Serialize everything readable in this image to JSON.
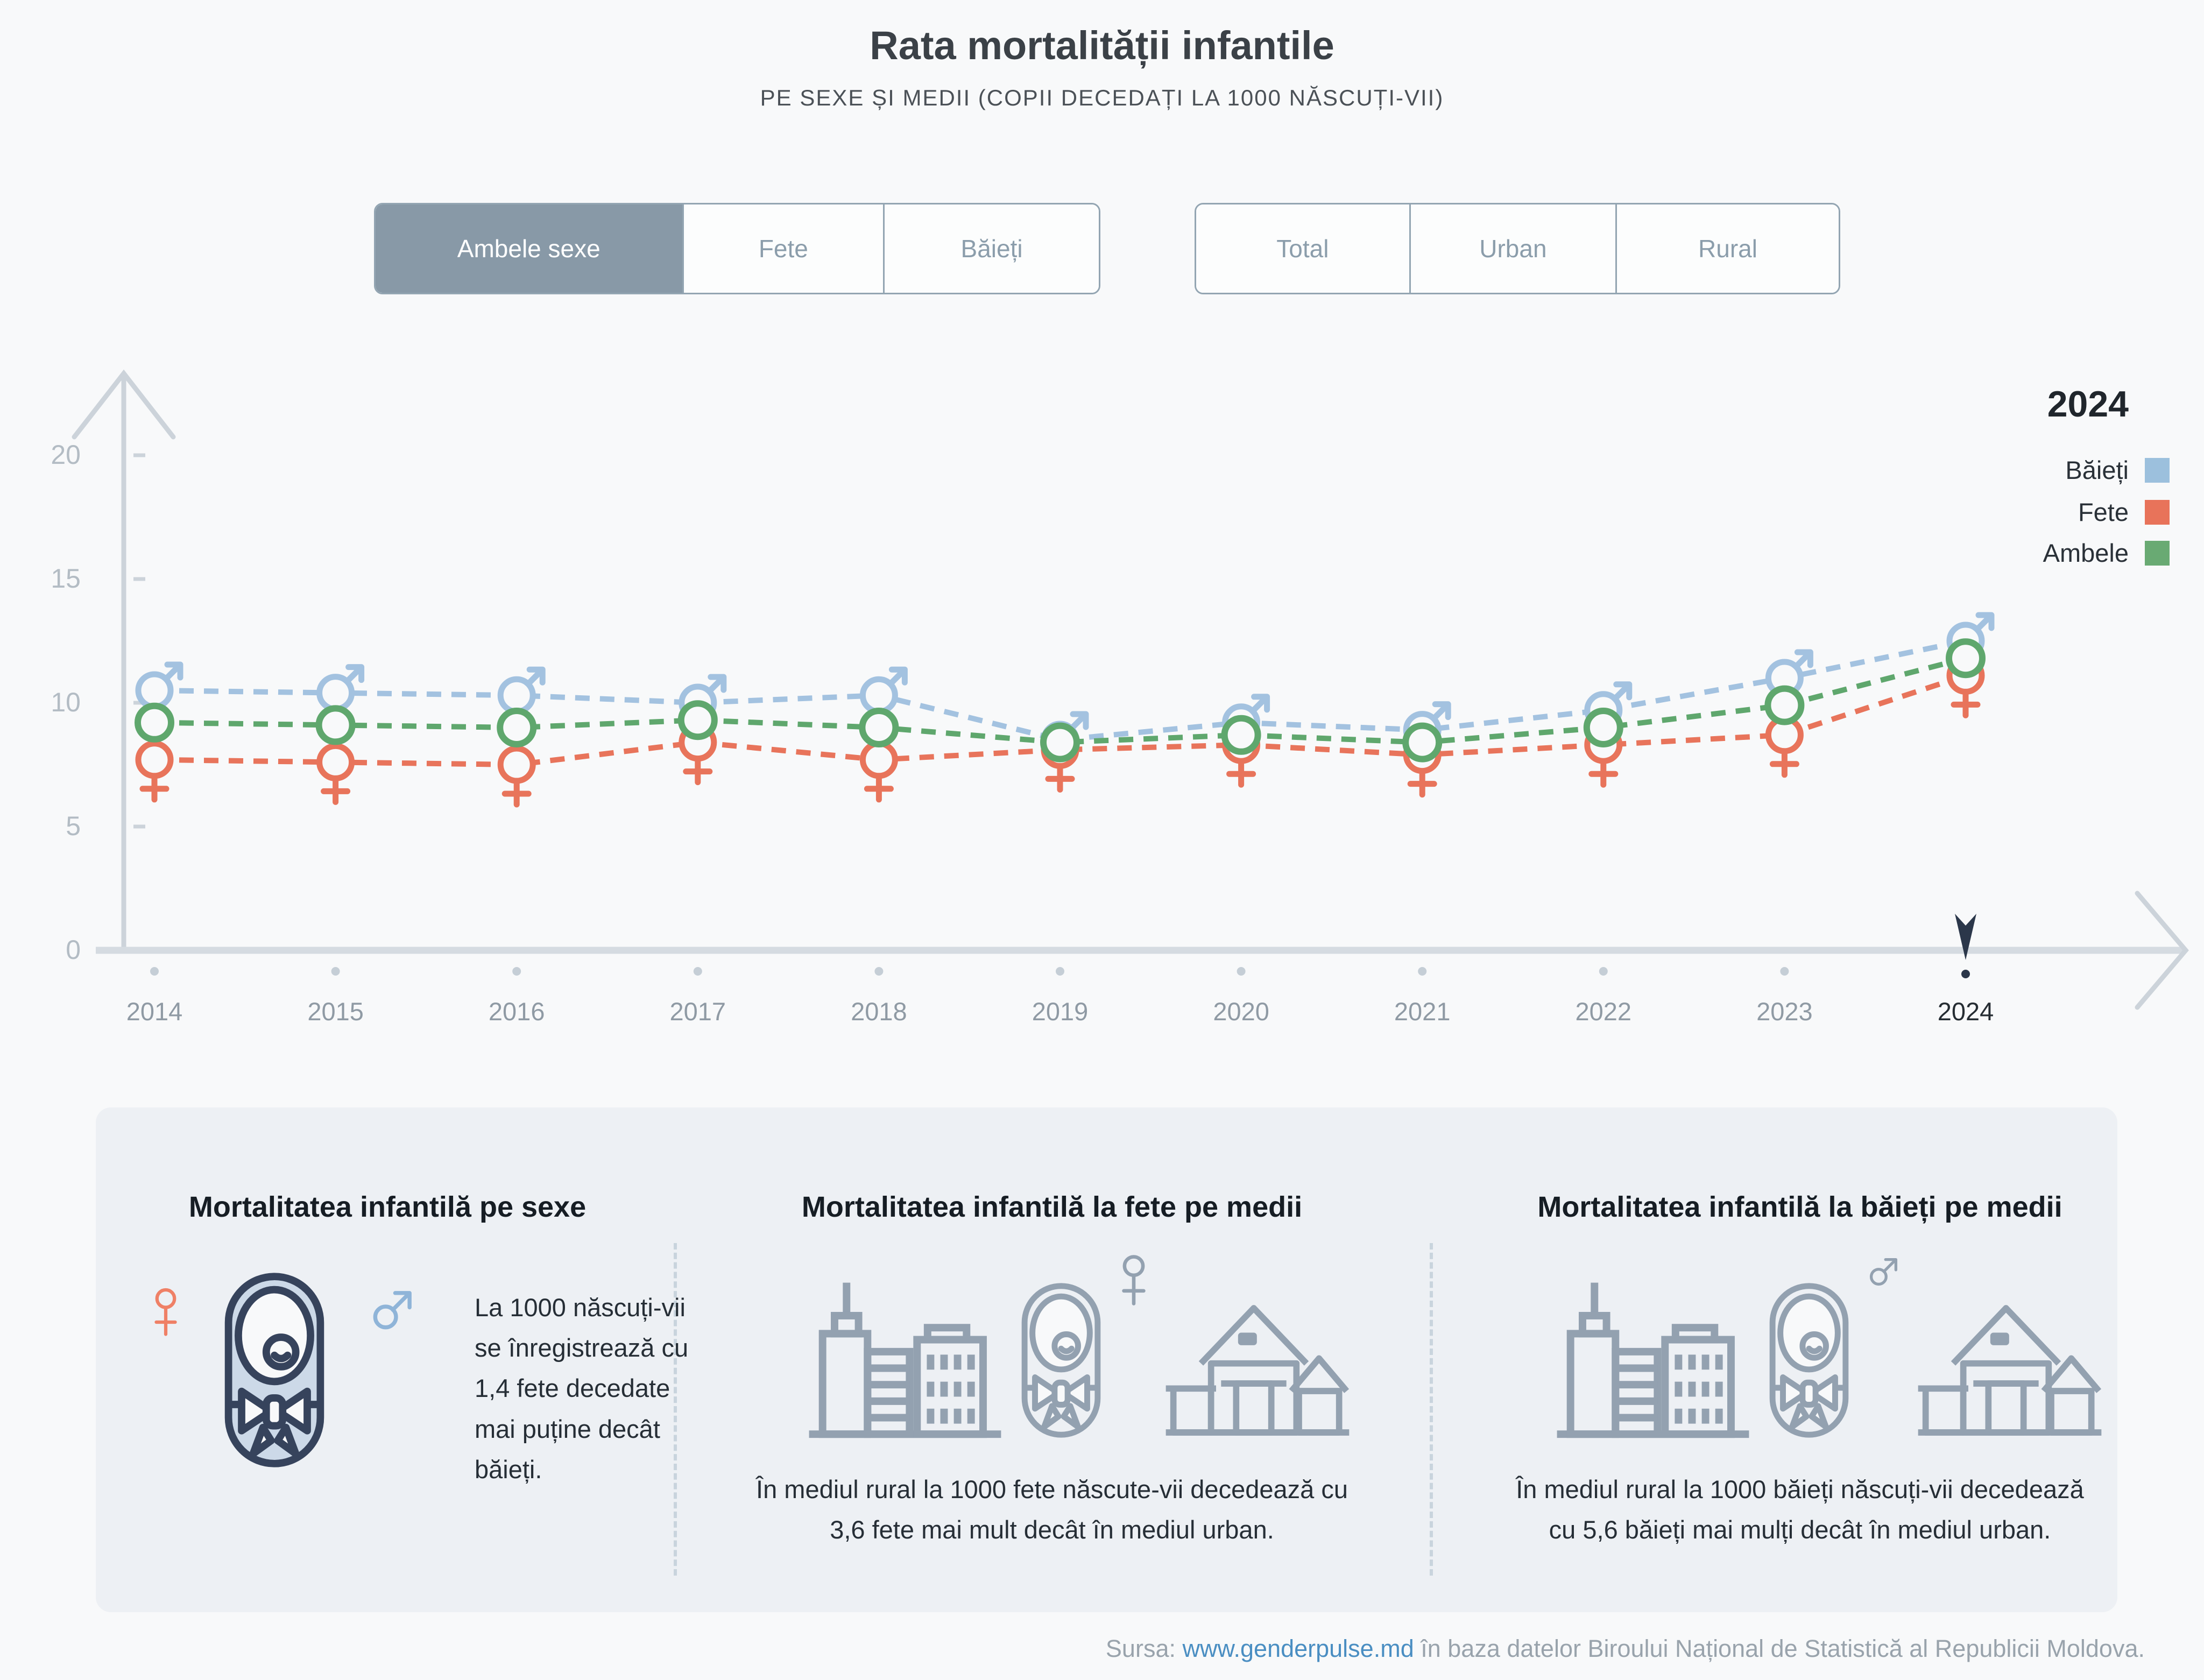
{
  "header": {
    "title": "Rata mortalității infantile",
    "subtitle": "PE SEXE ȘI MEDII (COPII DECEDAȚI LA 1000 NĂSCUȚI-VII)"
  },
  "filters": {
    "sex": {
      "options": [
        "Ambele sexe",
        "Fete",
        "Băieți"
      ],
      "selected": "Ambele sexe"
    },
    "medium": {
      "options": [
        "Total",
        "Urban",
        "Rural"
      ],
      "selected": ""
    }
  },
  "chart_data": {
    "type": "line",
    "title": "Rata mortalității infantile",
    "categories": [
      "2014",
      "2015",
      "2016",
      "2017",
      "2018",
      "2019",
      "2020",
      "2021",
      "2022",
      "2023",
      "2024"
    ],
    "series": [
      {
        "name": "Băieți",
        "marker": "male",
        "color": "#a3c2e0",
        "values": [
          10.5,
          10.4,
          10.3,
          10.0,
          10.3,
          8.5,
          9.2,
          8.9,
          9.7,
          11.0,
          12.5
        ]
      },
      {
        "name": "Fete",
        "marker": "female",
        "color": "#e8745b",
        "values": [
          7.7,
          7.6,
          7.5,
          8.4,
          7.7,
          8.1,
          8.3,
          7.9,
          8.3,
          8.7,
          11.1
        ]
      },
      {
        "name": "Ambele",
        "marker": "circle",
        "color": "#5fa76d",
        "values": [
          9.2,
          9.1,
          9.0,
          9.3,
          9.0,
          8.4,
          8.7,
          8.4,
          9.0,
          9.9,
          11.8
        ]
      }
    ],
    "ylim": [
      0,
      20
    ],
    "yticks": [
      0,
      5,
      10,
      15,
      20
    ],
    "selected_year": "2024",
    "grid": false,
    "line_style": "dashed",
    "legend_position": "right"
  },
  "legend": {
    "year": "2024",
    "entries": [
      {
        "label": "Băieți",
        "color": "#9cc0dd"
      },
      {
        "label": "Fete",
        "color": "#e8735a"
      },
      {
        "label": "Ambele",
        "color": "#69aa73"
      }
    ]
  },
  "cards": [
    {
      "title": "Mortalitatea infantilă pe sexe",
      "icons": [
        "female-symbol",
        "baby",
        "male-symbol"
      ],
      "text": "La 1000 născuți-vii se înregistrează cu 1,4 fete decedate mai puține decât băieți."
    },
    {
      "title": "Mortalitatea infantilă la fete pe medii",
      "icons": [
        "city",
        "baby",
        "female-symbol",
        "house"
      ],
      "text": "În mediul rural la 1000 fete născute-vii decedează cu 3,6 fete mai mult decât în mediul urban."
    },
    {
      "title": "Mortalitatea infantilă la băieți pe medii",
      "icons": [
        "city",
        "baby",
        "male-symbol",
        "house"
      ],
      "text": "În mediul rural la 1000 băieți născuți-vii decedează cu 5,6 băieți mai mulți decât în mediul urban."
    }
  ],
  "footer": {
    "prefix": "Sursa:",
    "link": "www.genderpulse.md",
    "suffix": "în baza datelor Biroului Național de Statistică al Republicii Moldova."
  },
  "colors": {
    "accent_dark": "#2b374a",
    "axis": "#ccd3da",
    "tick_label": "#b3bcc4",
    "year_label": "#8f9aa4",
    "icon_gray": "#93a1b0",
    "baby_navy": "#36435c",
    "baby_fill": "#ccd9e8",
    "female_orange": "#ef8066",
    "male_blue": "#8fb4d8"
  }
}
